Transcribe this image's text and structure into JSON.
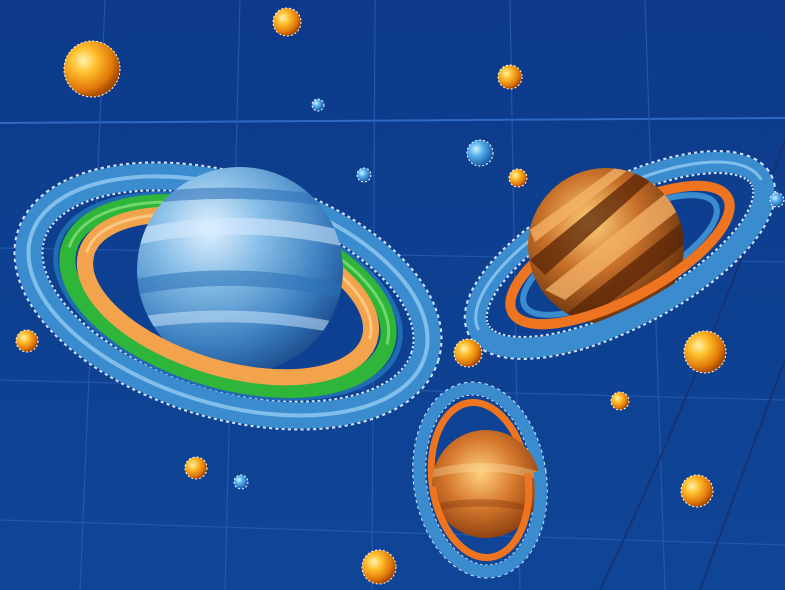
{
  "scene": {
    "background_color": "#0e3f92",
    "grid_line_color": "#2a5fb5",
    "objects": [
      {
        "name": "large-blue-ringed-planet",
        "planet_color": "#5f9fd6",
        "ring_colors": [
          "#3a8ccf",
          "#2fb53a",
          "#f2a34c"
        ]
      },
      {
        "name": "striped-brown-ringed-planet",
        "planet_color": "#9a4f17",
        "ring_colors": [
          "#3a8ccf",
          "#ef7420"
        ]
      },
      {
        "name": "small-orange-ringed-planet",
        "planet_color": "#c8621c",
        "ring_colors": [
          "#3a8ccf",
          "#ef7420"
        ]
      },
      {
        "name": "orange-spheres",
        "color": "#f4a51c"
      },
      {
        "name": "blue-spheres",
        "color": "#4aa6e8"
      }
    ]
  }
}
